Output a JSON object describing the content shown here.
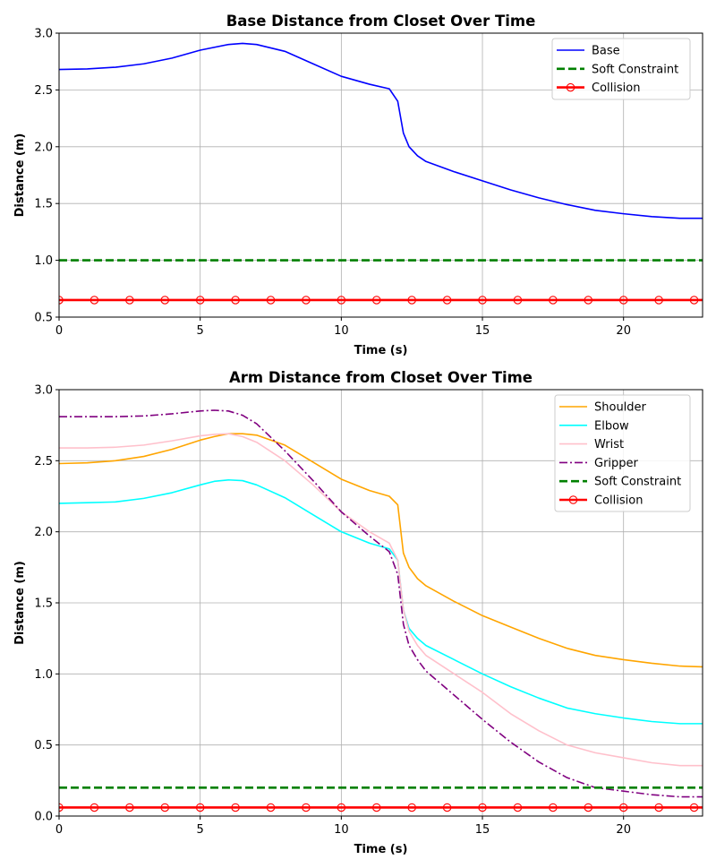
{
  "chart_data": [
    {
      "type": "line",
      "title": "Base Distance from Closet Over Time",
      "xlabel": "Time (s)",
      "ylabel": "Distance (m)",
      "xlim": [
        0,
        22.8
      ],
      "ylim": [
        0.5,
        3.0
      ],
      "xticks": [
        "0",
        "5",
        "10",
        "15",
        "20"
      ],
      "yticks": [
        "0.5",
        "1.0",
        "1.5",
        "2.0",
        "2.5",
        "3.0"
      ],
      "grid": true,
      "legend_position": "top-right",
      "x": [
        0,
        1,
        2,
        3,
        4,
        5,
        6,
        6.5,
        7,
        8,
        9,
        10,
        11,
        11.7,
        12.0,
        12.2,
        12.4,
        12.7,
        13,
        14,
        15,
        16,
        17,
        18,
        19,
        20,
        21,
        22,
        22.8
      ],
      "series": [
        {
          "name": "Base",
          "color": "#0000ff",
          "style": "solid",
          "values": [
            2.68,
            2.685,
            2.7,
            2.73,
            2.78,
            2.85,
            2.9,
            2.91,
            2.9,
            2.84,
            2.73,
            2.62,
            2.55,
            2.51,
            2.4,
            2.12,
            2.0,
            1.92,
            1.87,
            1.78,
            1.7,
            1.62,
            1.55,
            1.49,
            1.44,
            1.41,
            1.385,
            1.37,
            1.37
          ]
        },
        {
          "name": "Soft Constraint",
          "color": "#008000",
          "style": "dashed",
          "constant": 1.0
        },
        {
          "name": "Collision",
          "color": "#ff0000",
          "style": "solid-markers",
          "constant": 0.65
        }
      ]
    },
    {
      "type": "line",
      "title": "Arm Distance from Closet Over Time",
      "xlabel": "Time (s)",
      "ylabel": "Distance (m)",
      "xlim": [
        0,
        22.8
      ],
      "ylim": [
        0.0,
        3.0
      ],
      "xticks": [
        "0",
        "5",
        "10",
        "15",
        "20"
      ],
      "yticks": [
        "0.0",
        "0.5",
        "1.0",
        "1.5",
        "2.0",
        "2.5",
        "3.0"
      ],
      "grid": true,
      "legend_position": "top-right",
      "x": [
        0,
        1,
        2,
        3,
        4,
        5,
        5.5,
        6,
        6.5,
        7,
        8,
        9,
        10,
        11,
        11.7,
        12.0,
        12.2,
        12.4,
        12.7,
        13,
        14,
        15,
        16,
        17,
        18,
        19,
        20,
        21,
        22,
        22.8
      ],
      "series": [
        {
          "name": "Shoulder",
          "color": "#ffa500",
          "style": "solid",
          "values": [
            2.48,
            2.485,
            2.5,
            2.53,
            2.58,
            2.645,
            2.67,
            2.69,
            2.69,
            2.68,
            2.61,
            2.49,
            2.37,
            2.29,
            2.25,
            2.19,
            1.85,
            1.75,
            1.67,
            1.62,
            1.51,
            1.41,
            1.33,
            1.25,
            1.18,
            1.13,
            1.1,
            1.075,
            1.055,
            1.05
          ]
        },
        {
          "name": "Elbow",
          "color": "#00ffff",
          "style": "solid",
          "values": [
            2.2,
            2.205,
            2.21,
            2.235,
            2.275,
            2.33,
            2.355,
            2.365,
            2.36,
            2.33,
            2.24,
            2.12,
            2.0,
            1.92,
            1.88,
            1.8,
            1.45,
            1.32,
            1.25,
            1.2,
            1.1,
            1.0,
            0.91,
            0.83,
            0.76,
            0.72,
            0.69,
            0.665,
            0.65,
            0.65
          ]
        },
        {
          "name": "Wrist",
          "color": "#ffc0cb",
          "style": "solid",
          "values": [
            2.59,
            2.59,
            2.595,
            2.61,
            2.64,
            2.675,
            2.685,
            2.69,
            2.67,
            2.63,
            2.5,
            2.33,
            2.14,
            2.0,
            1.92,
            1.8,
            1.45,
            1.3,
            1.2,
            1.13,
            1.0,
            0.87,
            0.72,
            0.6,
            0.5,
            0.445,
            0.41,
            0.375,
            0.355,
            0.355
          ]
        },
        {
          "name": "Gripper",
          "color": "#800080",
          "style": "dashdot",
          "values": [
            2.81,
            2.81,
            2.81,
            2.815,
            2.83,
            2.85,
            2.855,
            2.85,
            2.82,
            2.76,
            2.57,
            2.36,
            2.14,
            1.97,
            1.86,
            1.7,
            1.35,
            1.2,
            1.1,
            1.02,
            0.85,
            0.68,
            0.52,
            0.38,
            0.27,
            0.2,
            0.175,
            0.15,
            0.135,
            0.135
          ]
        },
        {
          "name": "Soft Constraint",
          "color": "#008000",
          "style": "dashed",
          "constant": 0.2
        },
        {
          "name": "Collision",
          "color": "#ff0000",
          "style": "solid-markers",
          "constant": 0.06
        }
      ]
    }
  ]
}
